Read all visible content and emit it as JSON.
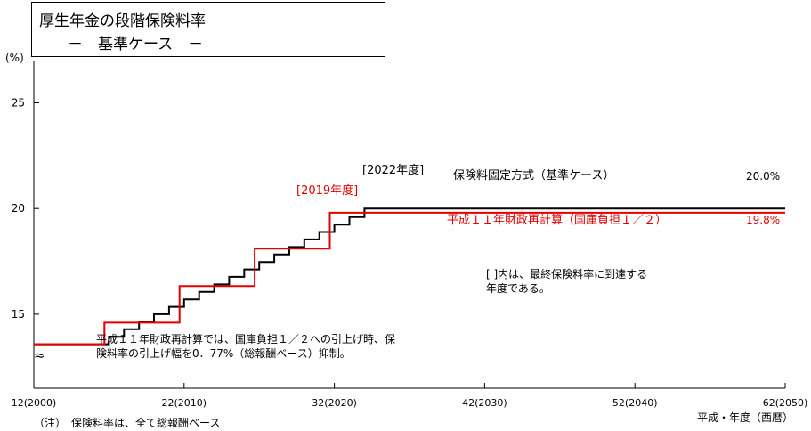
{
  "title": {
    "line1": "厚生年金の段階保険料率",
    "line2": "－　基準ケース　－"
  },
  "footnote": "（注）　保険料率は、全て総報酬ベース",
  "x_axis_label": "平成・年度（西暦）",
  "y_unit": "(%)",
  "axis_break_symbol": "≈",
  "annotations": {
    "year_2022": "[2022年度]",
    "year_2019": "[2019年度]",
    "fixed_method": "保険料固定方式（基準ケース）",
    "fixed_value": "20.0%",
    "recalc_method": "平成１１年財政再計算（国庫負担１／２）",
    "recalc_value": "19.8%",
    "bracket_note_1": "[  ]内は、最終保険料率に到達する",
    "bracket_note_2": "年度である。",
    "recalc_note_1": "平成１１年財政再計算では、国庫負担１／２への引上げ時、保",
    "recalc_note_2": "険料率の引上げ幅を0．77%（総報酬ベース）抑制。"
  },
  "chart_data": {
    "type": "line",
    "title": "厚生年金の段階保険料率　－　基準ケース　－",
    "xlabel": "平成・年度（西暦）",
    "ylabel": "(%)",
    "xlim": [
      2000,
      2050
    ],
    "ylim": [
      11.5,
      27
    ],
    "grid": false,
    "x_ticks": [
      {
        "x": 2000,
        "label": "12(2000)"
      },
      {
        "x": 2010,
        "label": "22(2010)"
      },
      {
        "x": 2020,
        "label": "32(2020)"
      },
      {
        "x": 2030,
        "label": "42(2030)"
      },
      {
        "x": 2040,
        "label": "52(2040)"
      },
      {
        "x": 2050,
        "label": "62(2050)"
      }
    ],
    "y_ticks": [
      {
        "y": 15,
        "label": "15"
      },
      {
        "y": 20,
        "label": "20"
      },
      {
        "y": 25,
        "label": "25"
      }
    ],
    "series": [
      {
        "name": "保険料固定方式（基準ケース）",
        "color": "#000000",
        "step": true,
        "x": [
          2000,
          2004.7,
          2005,
          2006,
          2007,
          2008,
          2009,
          2010,
          2011,
          2012,
          2013,
          2014,
          2015,
          2016,
          2017,
          2018,
          2019,
          2020,
          2021,
          2022,
          2050
        ],
        "y": [
          13.58,
          13.58,
          13.93,
          14.29,
          14.64,
          15.0,
          15.35,
          15.7,
          16.06,
          16.41,
          16.77,
          17.12,
          17.47,
          17.83,
          18.18,
          18.54,
          18.89,
          19.24,
          19.6,
          20.0,
          20.0
        ]
      },
      {
        "name": "平成１１年財政再計算（国庫負担１／２）",
        "color": "#e00000",
        "step": true,
        "x": [
          2000,
          2004.7,
          2004.7,
          2009.7,
          2009.7,
          2014.7,
          2014.7,
          2019.7,
          2019.7,
          2050
        ],
        "y": [
          13.58,
          13.58,
          14.6,
          14.6,
          16.33,
          16.33,
          18.1,
          18.1,
          19.8,
          19.8
        ]
      }
    ]
  }
}
